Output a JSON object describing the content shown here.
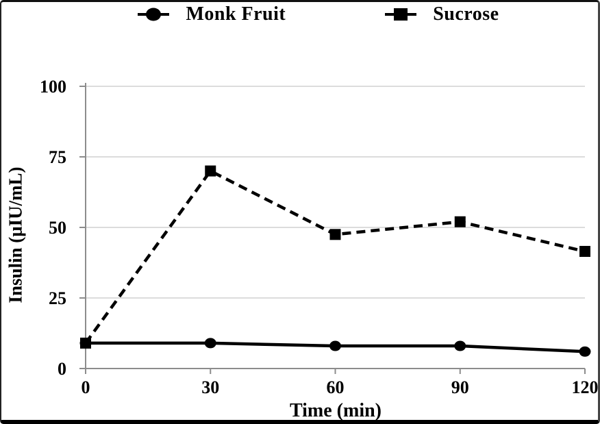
{
  "chart_data": {
    "type": "line",
    "x": [
      0,
      30,
      60,
      90,
      120
    ],
    "series": [
      {
        "name": "Monk Fruit",
        "marker": "circle",
        "line": "solid",
        "values": [
          9,
          9,
          8,
          8,
          6
        ]
      },
      {
        "name": "Sucrose",
        "marker": "square",
        "line": "dashed",
        "values": [
          9,
          70,
          47.5,
          52,
          41.5
        ]
      }
    ],
    "title": "",
    "xlabel": "Time (min)",
    "ylabel": "Insulin (μIU/mL)",
    "xlim": [
      0,
      120
    ],
    "ylim": [
      0,
      100
    ],
    "xticks": [
      0,
      30,
      60,
      90,
      120
    ],
    "yticks": [
      0,
      25,
      50,
      75,
      100
    ],
    "grid": "horizontal",
    "legend_position": "top",
    "colors": {
      "series": "#000000",
      "axis": "#8c8c8c",
      "gridline": "#dcdcdc",
      "background": "#ffffff",
      "text": "#000000"
    }
  }
}
